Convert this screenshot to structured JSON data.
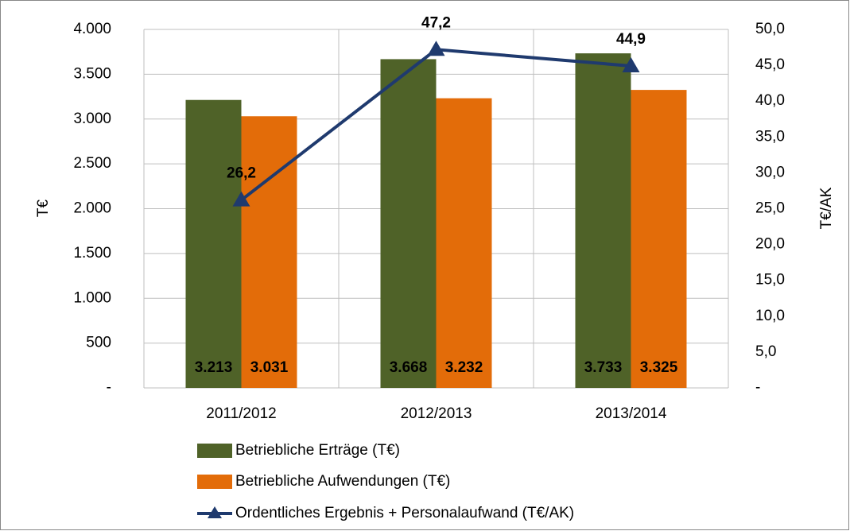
{
  "chart_data": {
    "type": "bar_line",
    "categories": [
      "2011/2012",
      "2012/2013",
      "2013/2014"
    ],
    "series": [
      {
        "name": "Betriebliche Erträge (T€)",
        "color": "#4f6228",
        "values": [
          3213,
          3668,
          3733
        ],
        "value_labels": [
          "3.213",
          "3.668",
          "3.733"
        ]
      },
      {
        "name": "Betriebliche Aufwendungen (T€)",
        "color": "#e36c09",
        "values": [
          3031,
          3232,
          3325
        ],
        "value_labels": [
          "3.031",
          "3.232",
          "3.325"
        ]
      },
      {
        "name": "Ordentliches Ergebnis + Personalaufwand (T€/AK)",
        "color": "#1f3a6e",
        "axis": "y2",
        "type": "line",
        "values": [
          26.2,
          47.2,
          44.9
        ],
        "value_labels": [
          "26,2",
          "47,2",
          "44,9"
        ]
      }
    ],
    "ylabel": "T€",
    "y2label": "T€/AK",
    "ylim": [
      0,
      4000
    ],
    "yticks": [
      {
        "value": 0,
        "label": "-"
      },
      500,
      {
        "value": 1000,
        "label": "1.000"
      },
      {
        "value": 1500,
        "label": "1.500"
      },
      {
        "value": 2000,
        "label": "2.000"
      },
      {
        "value": 2500,
        "label": "2.500"
      },
      {
        "value": 3000,
        "label": "3.000"
      },
      {
        "value": 3500,
        "label": "3.500"
      },
      {
        "value": 4000,
        "label": "4.000"
      }
    ],
    "y2lim": [
      0,
      50
    ],
    "y2ticks": [
      {
        "value": 0,
        "label": "-"
      },
      {
        "value": 5,
        "label": "5,0"
      },
      {
        "value": 10,
        "label": "10,0"
      },
      {
        "value": 15,
        "label": "15,0"
      },
      {
        "value": 20,
        "label": "20,0"
      },
      {
        "value": 25,
        "label": "25,0"
      },
      {
        "value": 30,
        "label": "30,0"
      },
      {
        "value": 35,
        "label": "35,0"
      },
      {
        "value": 40,
        "label": "40,0"
      },
      {
        "value": 45,
        "label": "45,0"
      },
      {
        "value": 50,
        "label": "50,0"
      }
    ],
    "grid": true
  }
}
